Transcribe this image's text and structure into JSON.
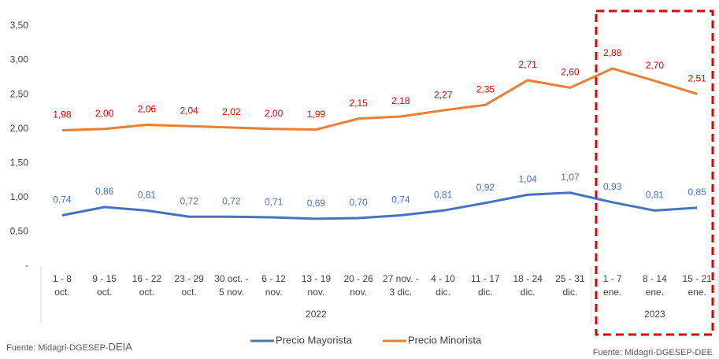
{
  "chart_data": {
    "type": "line",
    "categories": [
      "1 - 8\noct.",
      "9 - 15\noct.",
      "16 - 22\noct.",
      "23 - 29\noct.",
      "30 oct. -\n5 nov.",
      "6 - 12\nnov.",
      "13 - 19\nnov.",
      "20 - 26\nnov.",
      "27 nov. -\n3 dic.",
      "4 - 10\ndic.",
      "11 - 17\ndic.",
      "18 - 24\ndic.",
      "25 - 31\ndic.",
      "1 - 7\nene.",
      "8 - 14\nene.",
      "15 - 21\nene."
    ],
    "x_groups": [
      "2022",
      "2023"
    ],
    "series": [
      {
        "name": "Precio Mayorista",
        "color": "#4472c4",
        "values": [
          0.74,
          0.86,
          0.81,
          0.72,
          0.72,
          0.71,
          0.69,
          0.7,
          0.74,
          0.81,
          0.92,
          1.04,
          1.07,
          0.93,
          0.81,
          0.85
        ],
        "value_labels": [
          "0,74",
          "0,86",
          "0,81",
          "0,72",
          "0,72",
          "0,71",
          "0,69",
          "0,70",
          "0,74",
          "0,81",
          "0,92",
          "1,04",
          "1,07",
          "0,93",
          "0,81",
          "0,85"
        ],
        "label_color": "#4472c4"
      },
      {
        "name": "Precio Minorista",
        "color": "#ed7d31",
        "values": [
          1.98,
          2.0,
          2.06,
          2.04,
          2.02,
          2.0,
          1.99,
          2.15,
          2.18,
          2.27,
          2.35,
          2.71,
          2.6,
          2.88,
          2.7,
          2.51
        ],
        "value_labels": [
          "1,98",
          "2,00",
          "2,06",
          "2,04",
          "2,02",
          "2,00",
          "1,99",
          "2,15",
          "2,18",
          "2,27",
          "2,35",
          "2,71",
          "2,60",
          "2,88",
          "2,70",
          "2,51"
        ],
        "label_color": "#e00000"
      }
    ],
    "ylim": [
      0,
      3.5
    ],
    "yticks": [
      {
        "value": 0,
        "label": "-"
      },
      {
        "value": 0.5,
        "label": "0,50"
      },
      {
        "value": 1,
        "label": "1,00"
      },
      {
        "value": 1.5,
        "label": "1,50"
      },
      {
        "value": 2,
        "label": "2,00"
      },
      {
        "value": 2.5,
        "label": "2,50"
      },
      {
        "value": 3,
        "label": "3,00"
      },
      {
        "value": 3.5,
        "label": "3,50"
      }
    ],
    "grid": false,
    "legend": "bottom",
    "source_left": {
      "text": "Fuente: Midagri-DGESEP-",
      "emphasis": "DEIA"
    },
    "source_right": "Fuente: Midagri-DGESEP-DEE"
  }
}
